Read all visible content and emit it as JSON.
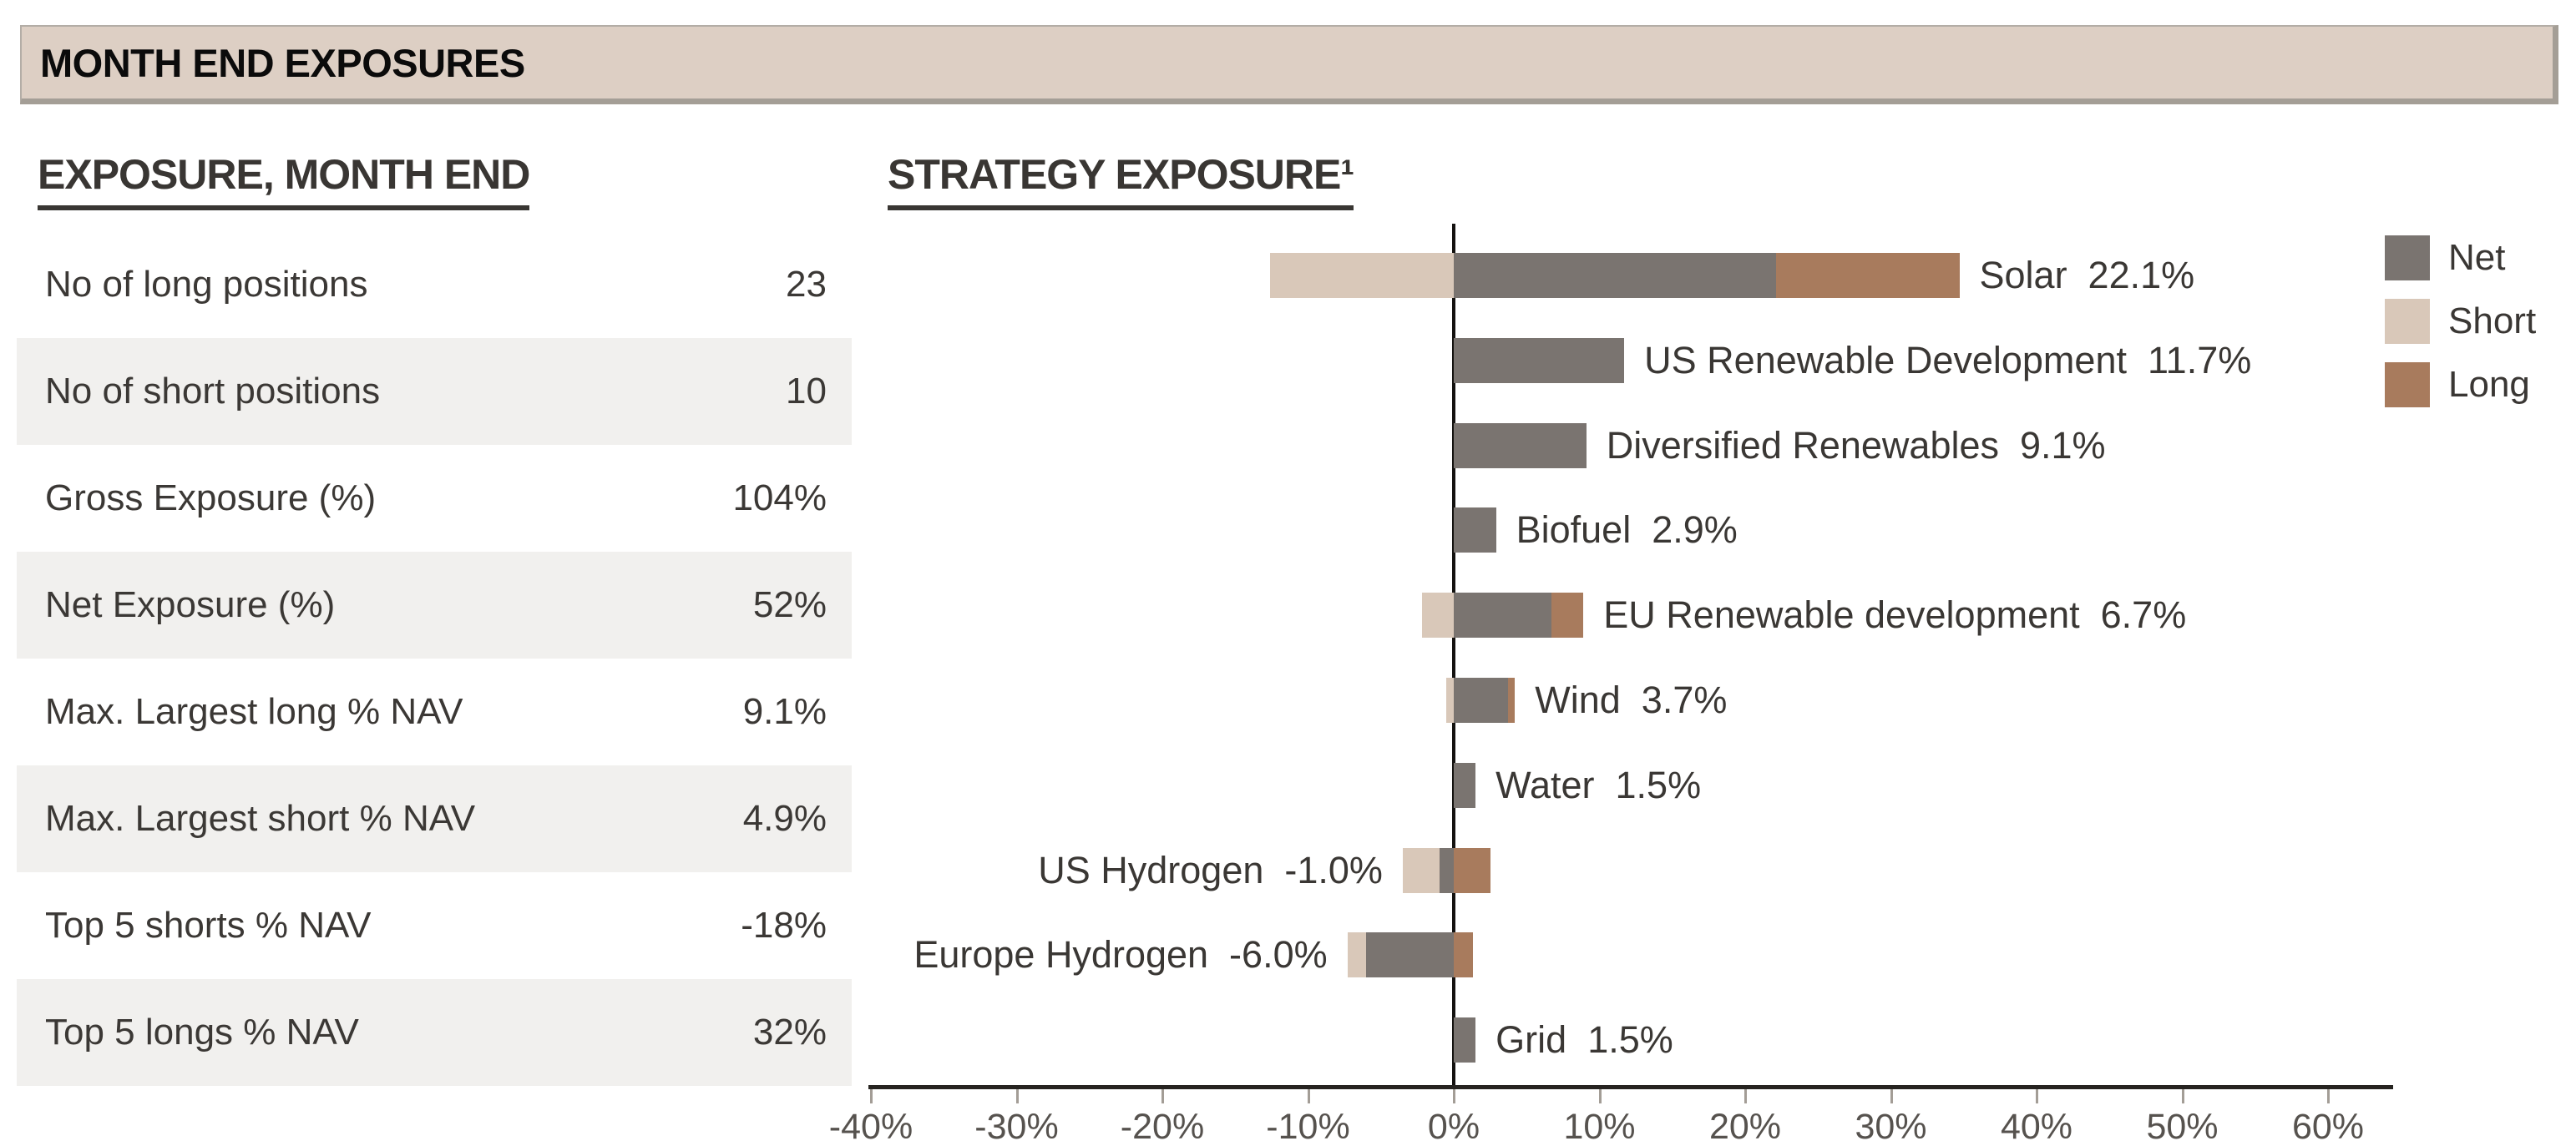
{
  "header": {
    "title": "MONTH END EXPOSURES"
  },
  "exposure_table": {
    "title": "EXPOSURE, MONTH END",
    "rows": [
      {
        "label": "No of long positions",
        "value": "23"
      },
      {
        "label": "No of short positions",
        "value": "10"
      },
      {
        "label": "Gross Exposure (%)",
        "value": "104%"
      },
      {
        "label": "Net Exposure (%)",
        "value": "52%"
      },
      {
        "label": "Max. Largest long % NAV",
        "value": "9.1%"
      },
      {
        "label": "Max. Largest short % NAV",
        "value": "4.9%"
      },
      {
        "label": "Top 5 shorts % NAV",
        "value": "-18%"
      },
      {
        "label": "Top 5 longs % NAV",
        "value": "32%"
      }
    ]
  },
  "chart": {
    "title": "STRATEGY EXPOSURE¹",
    "legend": [
      {
        "label": "Net",
        "color": "#7a7470"
      },
      {
        "label": "Short",
        "color": "#d9c8b9"
      },
      {
        "label": "Long",
        "color": "#a87b5d"
      }
    ]
  },
  "chart_data": {
    "type": "bar",
    "orientation": "horizontal",
    "title": "STRATEGY EXPOSURE¹",
    "categories": [
      "Solar",
      "US Renewable Development",
      "Diversified Renewables",
      "Biofuel",
      "EU Renewable development",
      "Wind",
      "Water",
      "US Hydrogen",
      "Europe Hydrogen",
      "Grid"
    ],
    "series": [
      {
        "name": "Net",
        "values": [
          22.1,
          11.7,
          9.1,
          2.9,
          6.7,
          3.7,
          1.5,
          -1.0,
          -6.0,
          1.5
        ]
      },
      {
        "name": "Short",
        "values": [
          -12.6,
          0,
          0,
          0,
          -2.2,
          -0.5,
          0,
          -3.5,
          -7.3,
          0
        ]
      },
      {
        "name": "Long",
        "values": [
          34.7,
          11.7,
          9.1,
          2.9,
          8.9,
          4.2,
          1.5,
          2.5,
          1.3,
          1.5
        ]
      }
    ],
    "bar_value_labels": [
      "22.1%",
      "11.7%",
      "9.1%",
      "2.9%",
      "6.7%",
      "3.7%",
      "1.5%",
      "-1.0%",
      "-6.0%",
      "1.5%"
    ],
    "x_ticks": [
      {
        "value": -40,
        "label": "-40%"
      },
      {
        "value": -30,
        "label": "-30%"
      },
      {
        "value": -20,
        "label": "-20%"
      },
      {
        "value": -10,
        "label": "-10%"
      },
      {
        "value": 0,
        "label": "0%"
      },
      {
        "value": 10,
        "label": "10%"
      },
      {
        "value": 20,
        "label": "20%"
      },
      {
        "value": 30,
        "label": "30%"
      },
      {
        "value": 40,
        "label": "40%"
      },
      {
        "value": 50,
        "label": "50%"
      },
      {
        "value": 60,
        "label": "60%"
      }
    ],
    "xlim": [
      -40,
      64
    ],
    "grid": false,
    "legend_position": "top-right",
    "colors": {
      "net": "#7a7470",
      "short": "#d9c8b9",
      "long": "#a87b5d"
    }
  }
}
